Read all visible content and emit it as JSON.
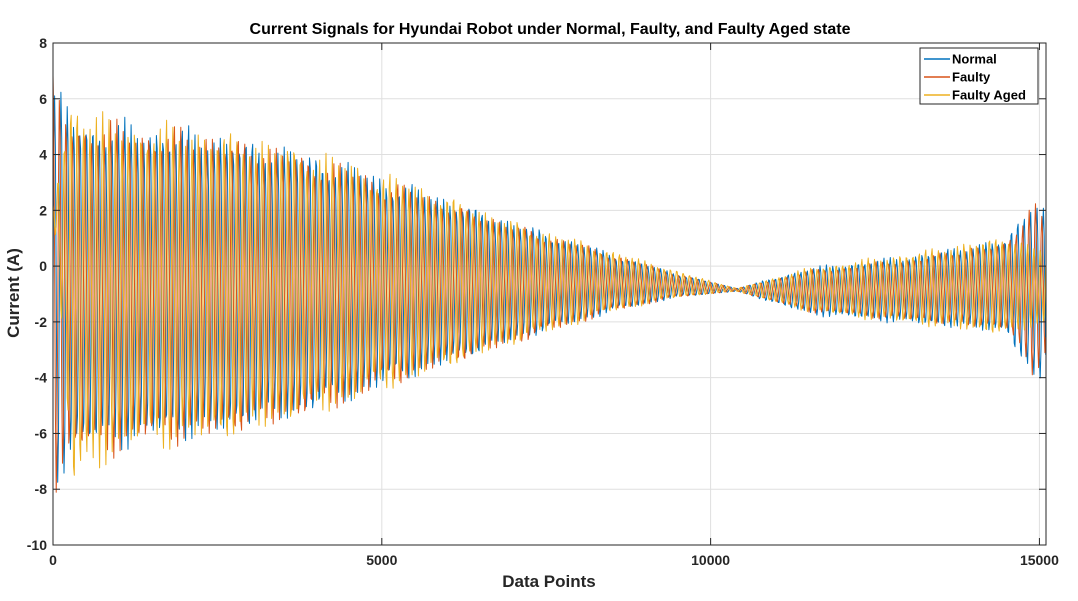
{
  "chart_data": {
    "type": "line",
    "title": "Current Signals for Hyundai Robot under Normal, Faulty, and Faulty Aged state",
    "xlabel": "Data Points",
    "ylabel": "Current (A)",
    "xlim": [
      0,
      15100
    ],
    "ylim": [
      -10,
      8
    ],
    "xticks": [
      0,
      5000,
      10000,
      15000
    ],
    "xtick_labels": [
      "0",
      "5000",
      "10000",
      "15000"
    ],
    "yticks": [
      -10,
      -8,
      -6,
      -4,
      -2,
      0,
      2,
      4,
      6,
      8
    ],
    "ytick_labels": [
      "-10",
      "-8",
      "-6",
      "-4",
      "-2",
      "0",
      "2",
      "4",
      "6",
      "8"
    ],
    "grid": true,
    "legend_position": "top-right",
    "series": [
      {
        "name": "Normal",
        "color": "#0072BD",
        "envelope": {
          "x": [
            0,
            300,
            800,
            1500,
            2500,
            4000,
            5500,
            7000,
            8500,
            9500,
            10400,
            11500,
            13000,
            14500,
            14900,
            15100
          ],
          "upper": [
            6.0,
            5.2,
            4.8,
            4.8,
            4.5,
            3.8,
            2.7,
            1.5,
            0.4,
            -0.3,
            -0.8,
            -0.1,
            0.3,
            0.9,
            2.4,
            1.8
          ],
          "lower": [
            -7.6,
            -6.4,
            -6.2,
            -6.0,
            -5.8,
            -5.0,
            -3.8,
            -2.6,
            -1.6,
            -1.1,
            -0.9,
            -1.7,
            -2.0,
            -2.3,
            -4.2,
            -3.8
          ]
        }
      },
      {
        "name": "Faulty",
        "color": "#D95319",
        "envelope": {
          "x": [
            0,
            300,
            800,
            1500,
            2500,
            4000,
            5500,
            7000,
            8500,
            9500,
            10400,
            11500,
            13000,
            14500,
            14900,
            15100
          ],
          "upper": [
            6.3,
            5.0,
            4.8,
            4.7,
            4.5,
            3.7,
            2.6,
            1.4,
            0.4,
            -0.3,
            -0.8,
            -0.2,
            0.2,
            0.8,
            2.2,
            1.4
          ],
          "lower": [
            -8.0,
            -6.5,
            -6.4,
            -6.1,
            -5.9,
            -5.1,
            -3.8,
            -2.7,
            -1.6,
            -1.1,
            -0.9,
            -1.6,
            -1.9,
            -2.2,
            -3.8,
            -3.0
          ]
        }
      },
      {
        "name": "Faulty Aged",
        "color": "#EDB120",
        "envelope": {
          "x": [
            0,
            300,
            800,
            1500,
            2500,
            4000,
            5500,
            7000,
            8500,
            9500,
            10400,
            11500,
            13000,
            14500,
            14900,
            15100
          ],
          "upper": [
            2.2,
            5.9,
            4.9,
            4.8,
            4.6,
            3.9,
            2.8,
            1.5,
            0.5,
            -0.2,
            -0.8,
            -0.1,
            0.4,
            1.0,
            0.6,
            0.6
          ],
          "lower": [
            2.2,
            -7.8,
            -6.6,
            -6.2,
            -6.0,
            -5.1,
            -3.9,
            -2.7,
            -1.6,
            -1.1,
            -0.9,
            -1.6,
            -2.0,
            -2.4,
            -2.1,
            -2.0
          ]
        }
      }
    ]
  }
}
